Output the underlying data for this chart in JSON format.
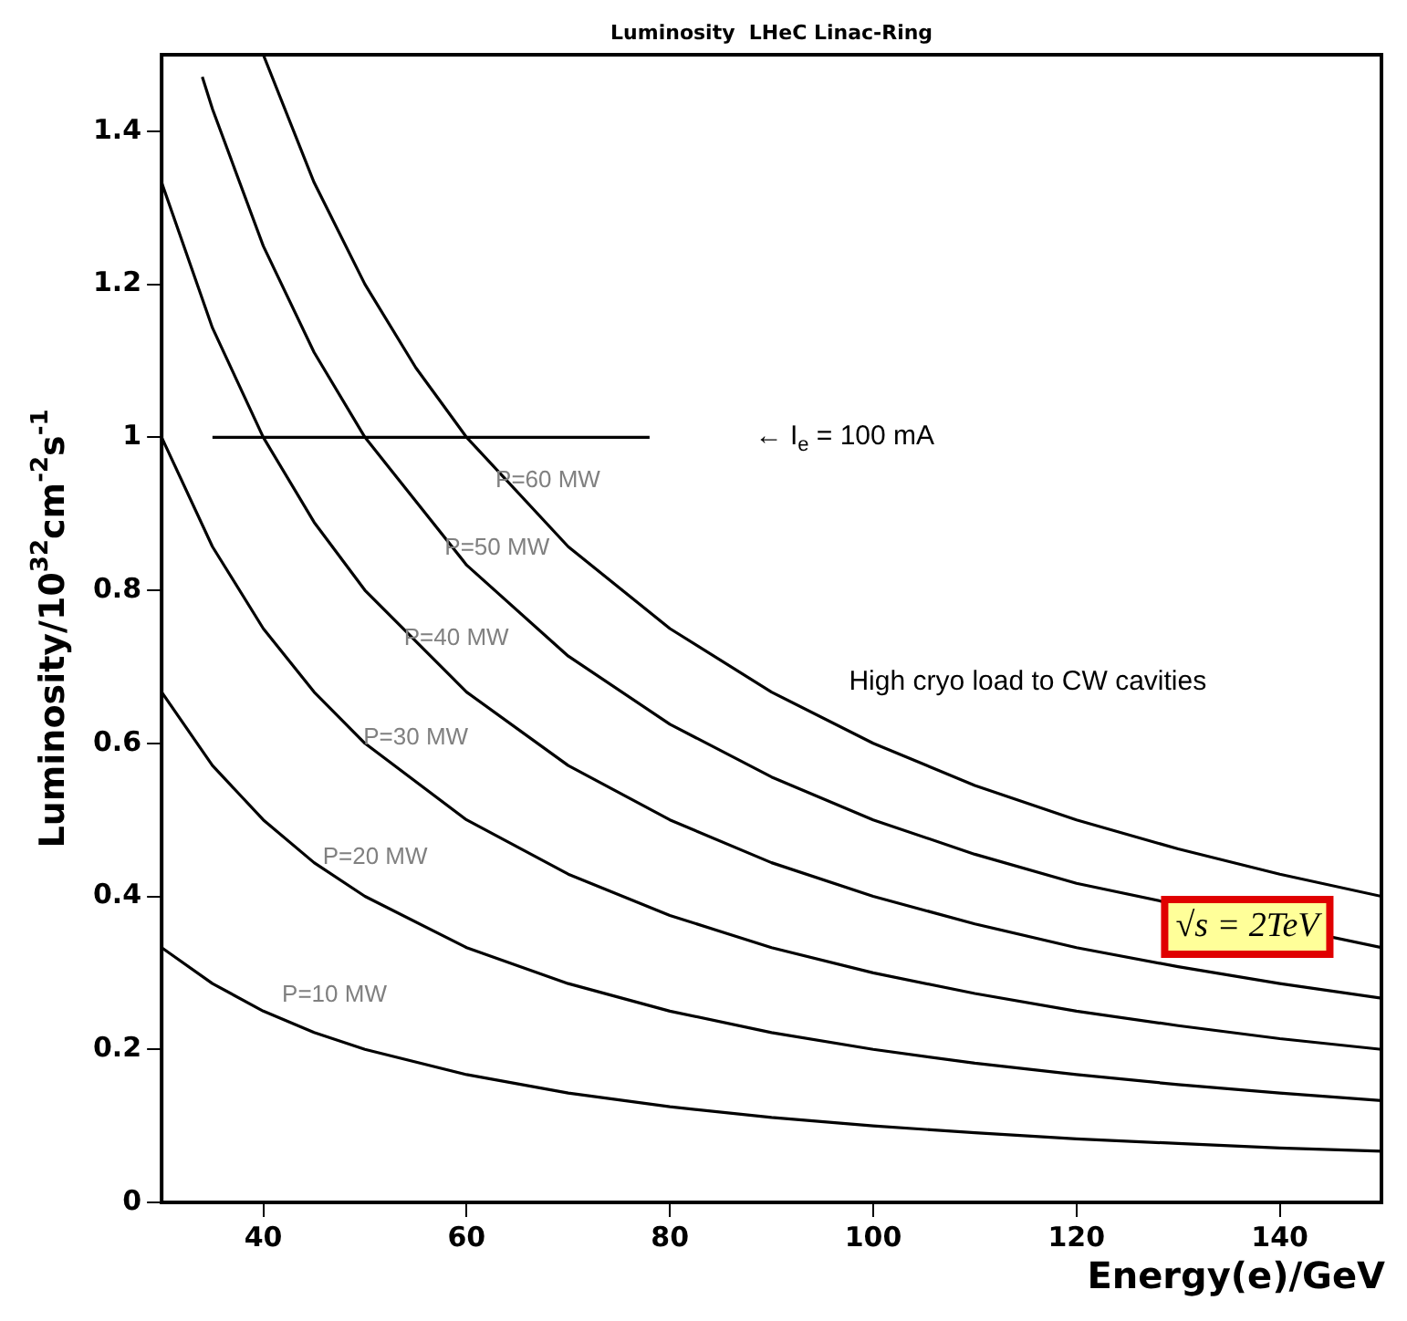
{
  "chart_data": {
    "type": "line",
    "title": "Luminosity  LHeC Linac-Ring",
    "xlabel": "Energy(e)/GeV",
    "ylabel": "Luminosity/10$^{32}$cm$^{-2}$s$^{-1}$",
    "xlim": [
      30,
      150
    ],
    "xticks": [
      40,
      60,
      80,
      100,
      120,
      140
    ],
    "ylim": [
      0,
      1.5
    ],
    "yticks": [
      0,
      0.2,
      0.4,
      0.6,
      0.8,
      1,
      1.2,
      1.4
    ],
    "grid": false,
    "legend": false,
    "marker": "none",
    "line_style": "solid",
    "series": [
      {
        "name": "P=10 MW",
        "color": "#000000",
        "x": [
          30,
          35,
          40,
          45,
          50,
          60,
          70,
          80,
          90,
          100,
          110,
          120,
          130,
          140,
          150
        ],
        "values": [
          0.333,
          0.286,
          0.25,
          0.222,
          0.2,
          0.167,
          0.143,
          0.125,
          0.111,
          0.1,
          0.091,
          0.083,
          0.077,
          0.071,
          0.067
        ]
      },
      {
        "name": "P=20 MW",
        "color": "#000000",
        "x": [
          30,
          35,
          40,
          45,
          50,
          60,
          70,
          80,
          90,
          100,
          110,
          120,
          130,
          140,
          150
        ],
        "values": [
          0.667,
          0.571,
          0.5,
          0.444,
          0.4,
          0.333,
          0.286,
          0.25,
          0.222,
          0.2,
          0.182,
          0.167,
          0.154,
          0.143,
          0.133
        ]
      },
      {
        "name": "P=30 MW",
        "color": "#000000",
        "x": [
          30,
          35,
          40,
          45,
          50,
          60,
          70,
          80,
          90,
          100,
          110,
          120,
          130,
          140,
          150
        ],
        "values": [
          1,
          0.857,
          0.75,
          0.667,
          0.6,
          0.5,
          0.429,
          0.375,
          0.333,
          0.3,
          0.273,
          0.25,
          0.231,
          0.214,
          0.2
        ]
      },
      {
        "name": "P=40 MW",
        "color": "#000000",
        "x": [
          30,
          35,
          40,
          45,
          50,
          60,
          70,
          80,
          90,
          100,
          110,
          120,
          130,
          140,
          150
        ],
        "values": [
          1.333,
          1.143,
          1,
          0.889,
          0.8,
          0.667,
          0.571,
          0.5,
          0.444,
          0.4,
          0.364,
          0.333,
          0.308,
          0.286,
          0.267
        ]
      },
      {
        "name": "P=50 MW",
        "color": "#000000",
        "x": [
          34,
          35,
          40,
          45,
          50,
          60,
          70,
          80,
          90,
          100,
          110,
          120,
          130,
          140,
          150
        ],
        "values": [
          1.471,
          1.429,
          1.25,
          1.111,
          1,
          0.833,
          0.714,
          0.625,
          0.556,
          0.5,
          0.455,
          0.417,
          null,
          null,
          0.333
        ]
      },
      {
        "name": "P=60 MW",
        "color": "#000000",
        "x": [
          40,
          45,
          50,
          55,
          60,
          70,
          80,
          90,
          100,
          110,
          120,
          130,
          140,
          150
        ],
        "values": [
          1.5,
          1.333,
          1.2,
          1.091,
          1,
          0.857,
          0.75,
          0.667,
          0.6,
          0.545,
          0.5,
          0.462,
          0.429,
          0.4
        ]
      },
      {
        "color": "#000000",
        "x": [
          35,
          78
        ],
        "values": [
          1,
          1
        ]
      }
    ],
    "annotations": [
      "← I$_{e}$ = 100 mA",
      "High cryo load to CW cavities",
      "√s = 2TeV"
    ]
  }
}
